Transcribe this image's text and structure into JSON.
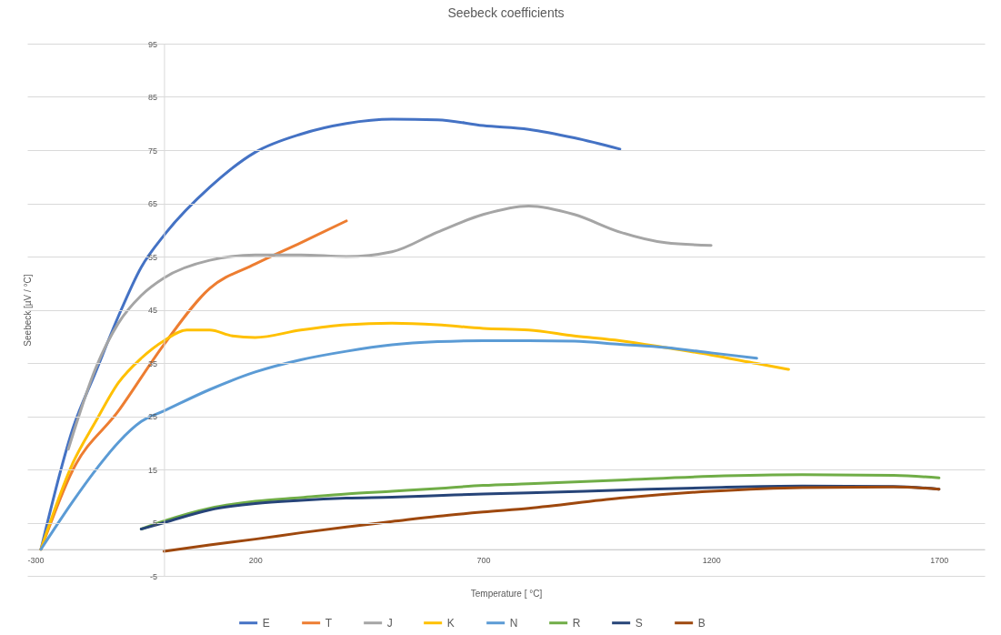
{
  "chart_data": {
    "type": "line",
    "title": "Seebeck coefficients",
    "xlabel": "Temperature [ °C]",
    "ylabel": "Seebeck [µV / °C]",
    "xlim": [
      -300,
      1800
    ],
    "xticks": [
      -300,
      200,
      700,
      1200,
      1700
    ],
    "ylim": [
      -5,
      95
    ],
    "yticks": [
      -5,
      5,
      15,
      25,
      35,
      45,
      55,
      65,
      75,
      85,
      95
    ],
    "grid": "y",
    "legend": "bottom",
    "marker": "none",
    "line_style": "solid",
    "series": [
      {
        "name": "E",
        "color": "#4472c4",
        "x": [
          -270,
          -200,
          -150,
          -100,
          -50,
          0,
          100,
          200,
          300,
          400,
          500,
          600,
          700,
          800,
          900,
          1000
        ],
        "values": [
          0,
          22.7,
          33.3,
          43.8,
          53,
          59,
          68,
          74.6,
          78,
          80,
          80.8,
          80.7,
          79.6,
          78.9,
          77.3,
          75.2
        ]
      },
      {
        "name": "T",
        "color": "#ed7d31",
        "x": [
          -270,
          -200,
          -100,
          0,
          100,
          200,
          300,
          400
        ],
        "values": [
          0,
          14.9,
          26,
          38.5,
          49,
          53.6,
          57.6,
          61.7
        ]
      },
      {
        "name": "J",
        "color": "#a5a5a5",
        "x": [
          -210,
          -150,
          -100,
          -50,
          0,
          100,
          200,
          300,
          400,
          500,
          600,
          700,
          800,
          900,
          1000,
          1100,
          1200
        ],
        "values": [
          18.8,
          34,
          42.5,
          47.7,
          51,
          54.3,
          55.3,
          55.3,
          55,
          55.9,
          59.6,
          62.9,
          64.5,
          62.9,
          59.6,
          57.6,
          57.1
        ]
      },
      {
        "name": "K",
        "color": "#ffc000",
        "x": [
          -270,
          -200,
          -150,
          -100,
          -50,
          0,
          50,
          100,
          150,
          200,
          300,
          400,
          500,
          600,
          700,
          800,
          900,
          1000,
          1100,
          1200,
          1300,
          1370
        ],
        "values": [
          0,
          16.2,
          24,
          31.3,
          35.9,
          39.2,
          41.2,
          41.2,
          40.1,
          39.8,
          41.2,
          42.2,
          42.5,
          42.2,
          41.5,
          41.2,
          40.1,
          39.2,
          37.9,
          36.5,
          34.9,
          33.8
        ]
      },
      {
        "name": "N",
        "color": "#5b9bd5",
        "x": [
          -270,
          -200,
          -150,
          -100,
          -50,
          0,
          100,
          200,
          300,
          400,
          500,
          600,
          700,
          800,
          900,
          1000,
          1100,
          1200,
          1300
        ],
        "values": [
          0,
          9,
          14.9,
          20.1,
          24,
          26,
          30,
          33.3,
          35.6,
          37.2,
          38.4,
          39,
          39.2,
          39.2,
          39.1,
          38.5,
          37.9,
          36.9,
          35.9
        ]
      },
      {
        "name": "R",
        "color": "#70ad47",
        "x": [
          -50,
          0,
          100,
          200,
          300,
          400,
          500,
          600,
          700,
          800,
          1000,
          1200,
          1400,
          1600,
          1700
        ],
        "values": [
          3.8,
          5.3,
          7.7,
          9,
          9.7,
          10.4,
          10.9,
          11.4,
          12,
          12.3,
          13,
          13.7,
          14,
          13.9,
          13.4
        ]
      },
      {
        "name": "S",
        "color": "#264478",
        "x": [
          -50,
          0,
          100,
          200,
          300,
          400,
          500,
          600,
          700,
          800,
          1000,
          1200,
          1400,
          1600,
          1700
        ],
        "values": [
          3.8,
          5,
          7.4,
          8.6,
          9.2,
          9.6,
          9.8,
          10.1,
          10.4,
          10.6,
          11.1,
          11.6,
          11.9,
          11.8,
          11.3
        ]
      },
      {
        "name": "B",
        "color": "#9e480e",
        "x": [
          0,
          100,
          200,
          300,
          400,
          500,
          600,
          700,
          800,
          1000,
          1200,
          1400,
          1600,
          1700
        ],
        "values": [
          -0.4,
          0.8,
          1.9,
          3.1,
          4.2,
          5.2,
          6.2,
          7,
          7.7,
          9.6,
          10.9,
          11.6,
          11.7,
          11.3
        ]
      }
    ]
  }
}
